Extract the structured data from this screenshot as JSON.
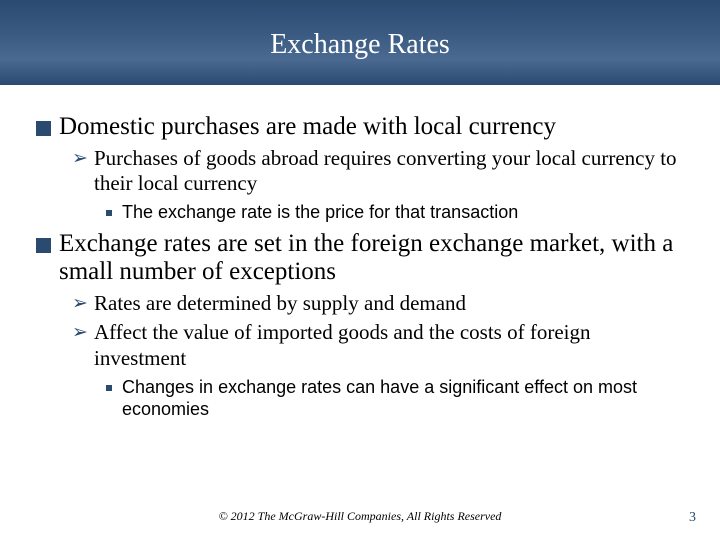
{
  "title": "Exchange Rates",
  "colors": {
    "bullet_l1": "#2a4a70",
    "bullet_l2": "#2a4a70",
    "bullet_l3": "#2a4a70",
    "text_primary": "#000000",
    "page_num": "#2a4a70"
  },
  "bullets": {
    "l1_a": "Domestic purchases are made with local currency",
    "l2_a1": "Purchases of goods abroad requires converting your local currency to their local currency",
    "l3_a1": "The exchange rate is the price for that transaction",
    "l1_b": "Exchange rates are set in the foreign exchange market, with a small number of exceptions",
    "l2_b1": "Rates are determined by supply and demand",
    "l2_b2": "Affect the value of imported goods and the costs of foreign investment",
    "l3_b1": "Changes in exchange rates can have a significant effect on most economies"
  },
  "footer": "© 2012 The McGraw-Hill Companies, All Rights Reserved",
  "page_number": "3"
}
